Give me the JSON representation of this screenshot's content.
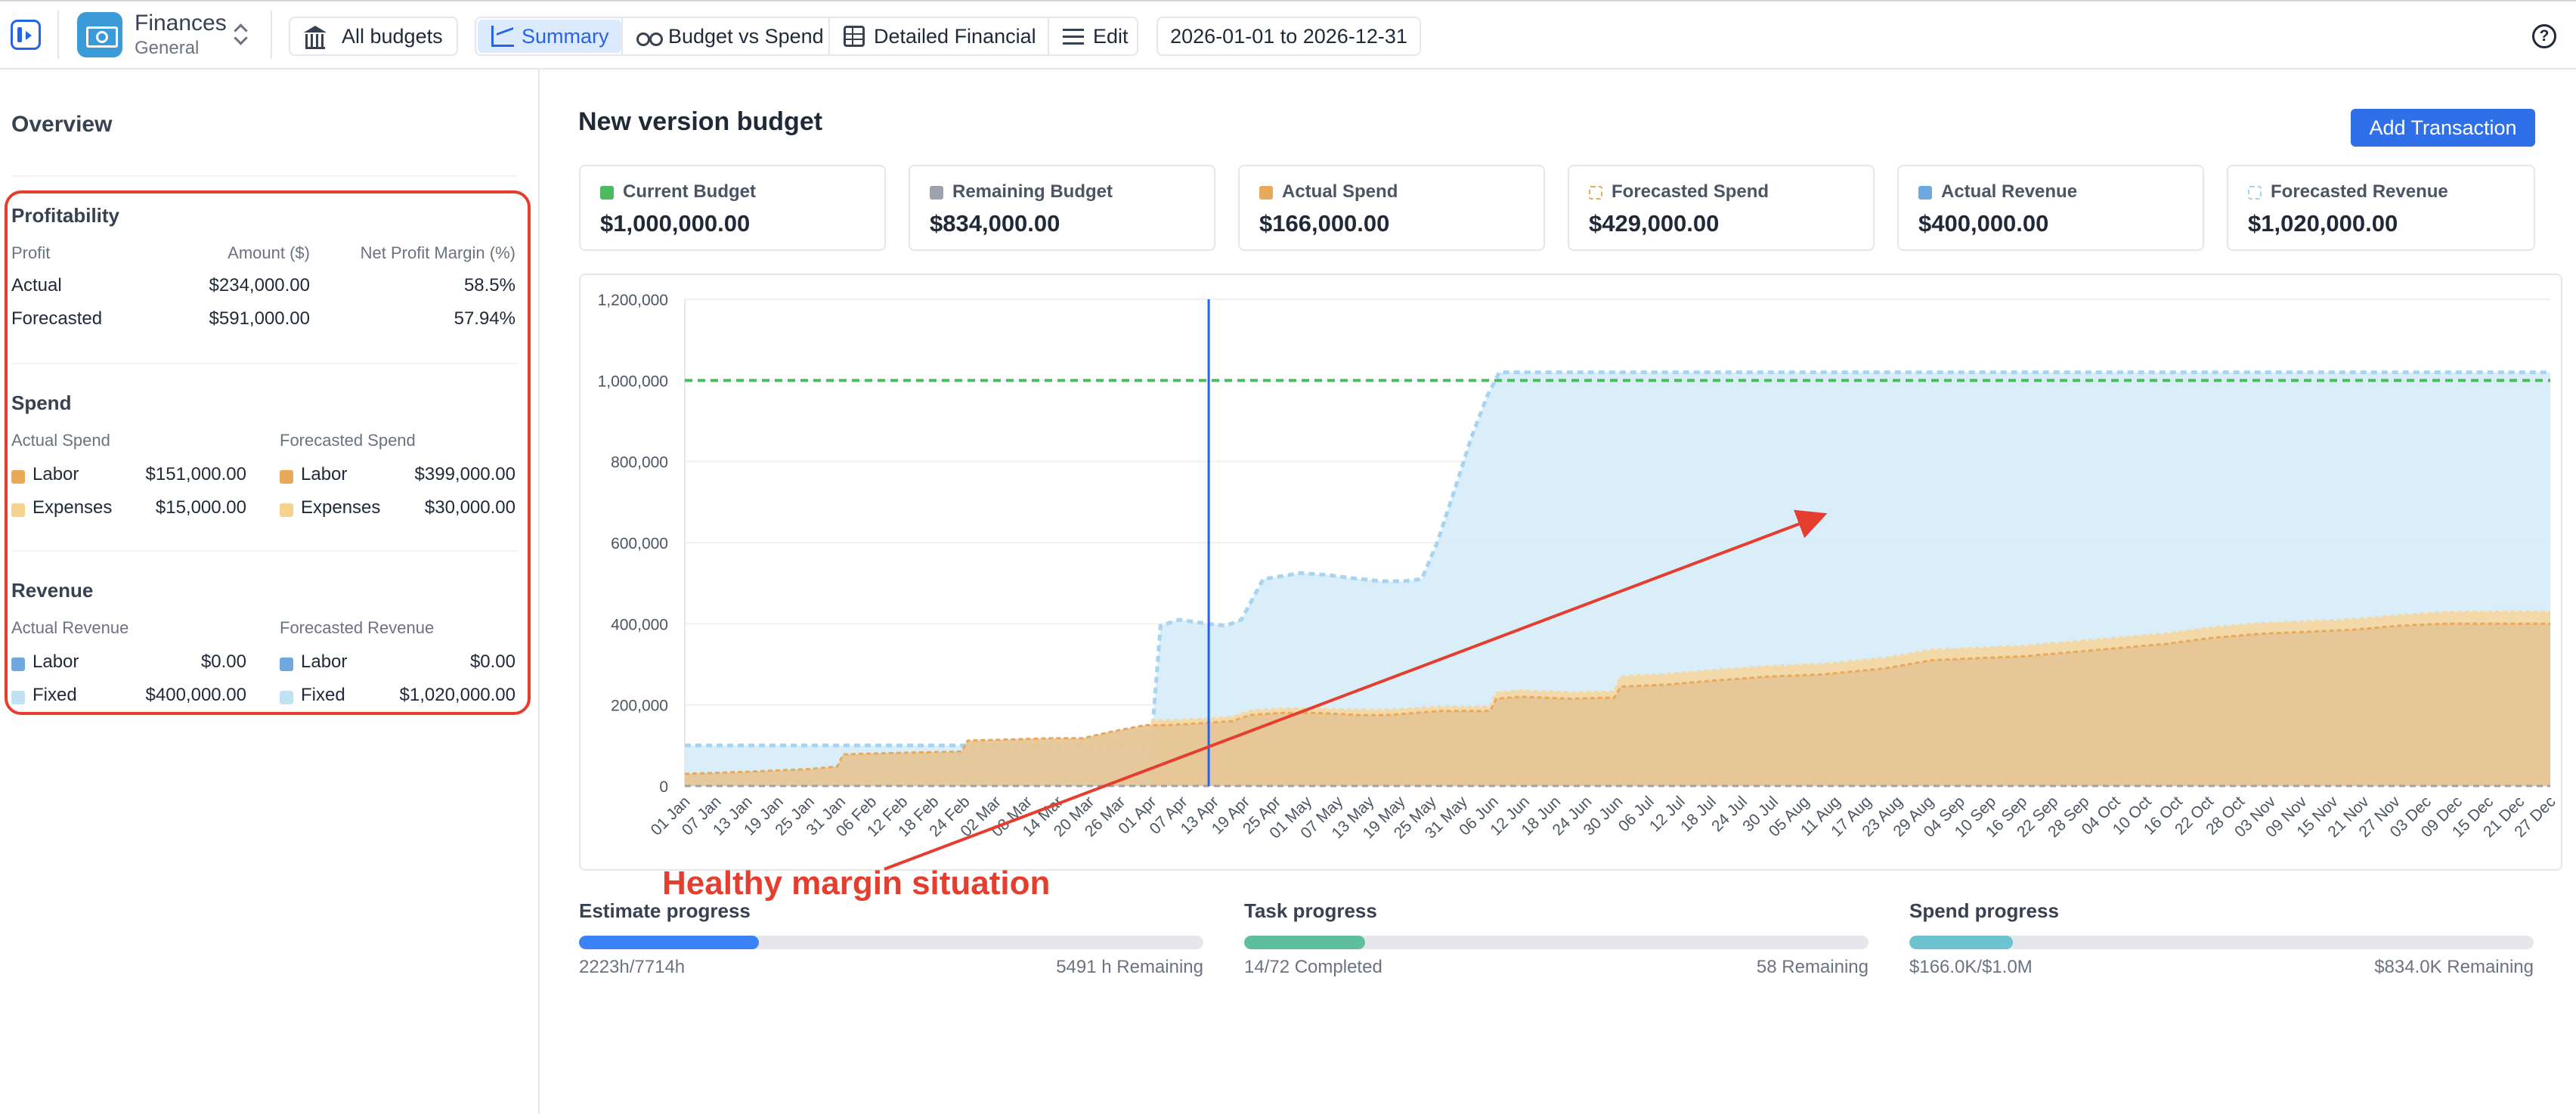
{
  "app": {
    "name": "Finances",
    "subtitle": "General"
  },
  "nav": {
    "all_budgets": "All budgets",
    "tabs": [
      {
        "label": "Summary",
        "active": true
      },
      {
        "label": "Budget vs Spend",
        "active": false
      },
      {
        "label": "Detailed Financial",
        "active": false
      },
      {
        "label": "Edit",
        "active": false
      }
    ],
    "date_range": "2026-01-01 to 2026-12-31",
    "help_icon": "?"
  },
  "overview": {
    "title": "Overview",
    "profitability": {
      "title": "Profitability",
      "headers": [
        "Profit",
        "Amount ($)",
        "Net Profit Margin (%)"
      ],
      "rows": [
        {
          "label": "Actual",
          "amount": "$234,000.00",
          "margin": "58.5%"
        },
        {
          "label": "Forecasted",
          "amount": "$591,000.00",
          "margin": "57.94%"
        }
      ]
    },
    "spend": {
      "title": "Spend",
      "actual_header": "Actual Spend",
      "forecast_header": "Forecasted Spend",
      "actual": [
        {
          "label": "Labor",
          "value": "$151,000.00",
          "color": "#e8a95b"
        },
        {
          "label": "Expenses",
          "value": "$15,000.00",
          "color": "#f5d38f"
        }
      ],
      "forecast": [
        {
          "label": "Labor",
          "value": "$399,000.00",
          "color": "#e8a95b"
        },
        {
          "label": "Expenses",
          "value": "$30,000.00",
          "color": "#f5d38f"
        }
      ]
    },
    "revenue": {
      "title": "Revenue",
      "actual_header": "Actual Revenue",
      "forecast_header": "Forecasted Revenue",
      "actual": [
        {
          "label": "Labor",
          "value": "$0.00",
          "color": "#6fa9e0"
        },
        {
          "label": "Fixed",
          "value": "$400,000.00",
          "color": "#bfe3f5"
        }
      ],
      "forecast": [
        {
          "label": "Labor",
          "value": "$0.00",
          "color": "#6fa9e0"
        },
        {
          "label": "Fixed",
          "value": "$1,020,000.00",
          "color": "#bfe3f5"
        }
      ]
    }
  },
  "main": {
    "title": "New version budget",
    "add_button": "Add Transaction",
    "cards": [
      {
        "label": "Current Budget",
        "value": "$1,000,000.00",
        "color": "#4cbb5e",
        "style": "solid"
      },
      {
        "label": "Remaining Budget",
        "value": "$834,000.00",
        "color": "#9ca3af",
        "style": "solid"
      },
      {
        "label": "Actual Spend",
        "value": "$166,000.00",
        "color": "#e8a95b",
        "style": "solid"
      },
      {
        "label": "Forecasted Spend",
        "value": "$429,000.00",
        "color": "#e8a95b",
        "style": "dashed"
      },
      {
        "label": "Actual Revenue",
        "value": "$400,000.00",
        "color": "#6fa9e0",
        "style": "solid"
      },
      {
        "label": "Forecasted Revenue",
        "value": "$1,020,000.00",
        "color": "#9fd2ee",
        "style": "dashed"
      }
    ],
    "annotation": "Healthy margin situation"
  },
  "chart_data": {
    "type": "area",
    "ylim": [
      0,
      1200000
    ],
    "y_ticks": [
      "0",
      "200,000",
      "400,000",
      "600,000",
      "800,000",
      "1,000,000",
      "1,200,000"
    ],
    "y_tick_values": [
      0,
      200000,
      400000,
      600000,
      800000,
      1000000,
      1200000
    ],
    "x_labels": [
      "01 Jan",
      "07 Jan",
      "13 Jan",
      "19 Jan",
      "25 Jan",
      "31 Jan",
      "06 Feb",
      "12 Feb",
      "18 Feb",
      "24 Feb",
      "02 Mar",
      "08 Mar",
      "14 Mar",
      "20 Mar",
      "26 Mar",
      "01 Apr",
      "07 Apr",
      "13 Apr",
      "19 Apr",
      "25 Apr",
      "01 May",
      "07 May",
      "13 May",
      "19 May",
      "25 May",
      "31 May",
      "06 Jun",
      "12 Jun",
      "18 Jun",
      "24 Jun",
      "30 Jun",
      "06 Jul",
      "12 Jul",
      "18 Jul",
      "24 Jul",
      "30 Jul",
      "05 Aug",
      "11 Aug",
      "17 Aug",
      "23 Aug",
      "29 Aug",
      "04 Sep",
      "10 Sep",
      "16 Sep",
      "22 Sep",
      "28 Sep",
      "04 Oct",
      "10 Oct",
      "16 Oct",
      "22 Oct",
      "28 Oct",
      "03 Nov",
      "09 Nov",
      "15 Nov",
      "21 Nov",
      "27 Nov",
      "03 Dec",
      "09 Dec",
      "15 Dec",
      "21 Dec",
      "27 Dec"
    ],
    "today_label": "13 Apr",
    "budget_line": 1000000,
    "colors": {
      "budget": "#4cbb5e",
      "revenue_fill": "#d6ecf8",
      "revenue_line": "#a8d4ef",
      "spend_fill": "#e6c697",
      "spend_line": "#e8a95b",
      "forecast_spend_fill": "#f4d9a8",
      "today": "#2563eb",
      "axis_zero": "#9ca3af"
    },
    "series": [
      {
        "name": "Actual Revenue",
        "points": [
          [
            0,
            100000
          ],
          [
            15,
            100000
          ],
          [
            15.3,
            395000
          ],
          [
            15.9,
            410000
          ],
          [
            16.8,
            400000
          ],
          [
            17.4,
            395000
          ],
          [
            17.9,
            410000
          ],
          [
            18.6,
            510000
          ],
          [
            19.8,
            525000
          ],
          [
            20.7,
            520000
          ],
          [
            21.5,
            512000
          ],
          [
            22.4,
            505000
          ],
          [
            23.1,
            505000
          ],
          [
            23.7,
            510000
          ],
          [
            24.2,
            600000
          ],
          [
            24.8,
            740000
          ],
          [
            25.3,
            860000
          ],
          [
            25.8,
            960000
          ],
          [
            26.2,
            1020000
          ],
          [
            60,
            1020000
          ]
        ]
      },
      {
        "name": "Actual Spend",
        "points": [
          [
            0,
            30000
          ],
          [
            2,
            35000
          ],
          [
            4,
            42000
          ],
          [
            4.9,
            48000
          ],
          [
            5.1,
            78000
          ],
          [
            7,
            82000
          ],
          [
            8.9,
            85000
          ],
          [
            9.1,
            112000
          ],
          [
            10.6,
            115000
          ],
          [
            11.8,
            118000
          ],
          [
            12.8,
            118000
          ],
          [
            13.8,
            135000
          ],
          [
            14.8,
            150000
          ],
          [
            15.5,
            150000
          ],
          [
            16.7,
            155000
          ],
          [
            17.6,
            160000
          ],
          [
            18.2,
            175000
          ],
          [
            19.1,
            180000
          ],
          [
            20.4,
            180000
          ],
          [
            21.7,
            175000
          ],
          [
            22.6,
            175000
          ],
          [
            24.3,
            185000
          ],
          [
            25.9,
            185000
          ],
          [
            26.1,
            215000
          ],
          [
            26.9,
            220000
          ],
          [
            28.5,
            215000
          ],
          [
            29.9,
            218000
          ],
          [
            30.1,
            245000
          ],
          [
            31.6,
            250000
          ],
          [
            33.1,
            260000
          ],
          [
            34.9,
            270000
          ],
          [
            36.6,
            275000
          ],
          [
            38.6,
            290000
          ],
          [
            40.1,
            310000
          ],
          [
            41.6,
            315000
          ],
          [
            43.1,
            320000
          ],
          [
            44.6,
            330000
          ],
          [
            46.1,
            340000
          ],
          [
            47.6,
            350000
          ],
          [
            49.1,
            365000
          ],
          [
            50.6,
            375000
          ],
          [
            52.1,
            380000
          ],
          [
            53.6,
            385000
          ],
          [
            55.1,
            395000
          ],
          [
            56.6,
            400000
          ],
          [
            58.1,
            400000
          ],
          [
            60,
            400000
          ]
        ]
      },
      {
        "name": "Forecasted Spend",
        "points": [
          [
            15,
            160000
          ],
          [
            16.7,
            165000
          ],
          [
            17.6,
            170000
          ],
          [
            18.2,
            185000
          ],
          [
            19.1,
            190000
          ],
          [
            20.4,
            190000
          ],
          [
            21.7,
            187000
          ],
          [
            22.6,
            187000
          ],
          [
            24.3,
            195000
          ],
          [
            25.9,
            195000
          ],
          [
            26.1,
            230000
          ],
          [
            26.9,
            235000
          ],
          [
            28.5,
            230000
          ],
          [
            29.9,
            232000
          ],
          [
            30.1,
            270000
          ],
          [
            31.6,
            275000
          ],
          [
            33.1,
            285000
          ],
          [
            34.9,
            295000
          ],
          [
            36.6,
            300000
          ],
          [
            38.6,
            315000
          ],
          [
            40.1,
            335000
          ],
          [
            41.6,
            340000
          ],
          [
            43.1,
            345000
          ],
          [
            44.6,
            355000
          ],
          [
            46.1,
            365000
          ],
          [
            47.6,
            375000
          ],
          [
            49.1,
            390000
          ],
          [
            50.6,
            400000
          ],
          [
            52.1,
            405000
          ],
          [
            53.6,
            410000
          ],
          [
            55.1,
            420000
          ],
          [
            56.6,
            428000
          ],
          [
            58.1,
            429000
          ],
          [
            60,
            429000
          ]
        ]
      }
    ]
  },
  "progress": [
    {
      "title": "Estimate progress",
      "left": "2223h/7714h",
      "right": "5491 h Remaining",
      "fraction": 0.288,
      "color": "#3b82f6"
    },
    {
      "title": "Task progress",
      "left": "14/72 Completed",
      "right": "58 Remaining",
      "fraction": 0.194,
      "color": "#5ebf9c"
    },
    {
      "title": "Spend progress",
      "left": "$166.0K/$1.0M",
      "right": "$834.0K Remaining",
      "fraction": 0.166,
      "color": "#6dc3cf"
    }
  ]
}
